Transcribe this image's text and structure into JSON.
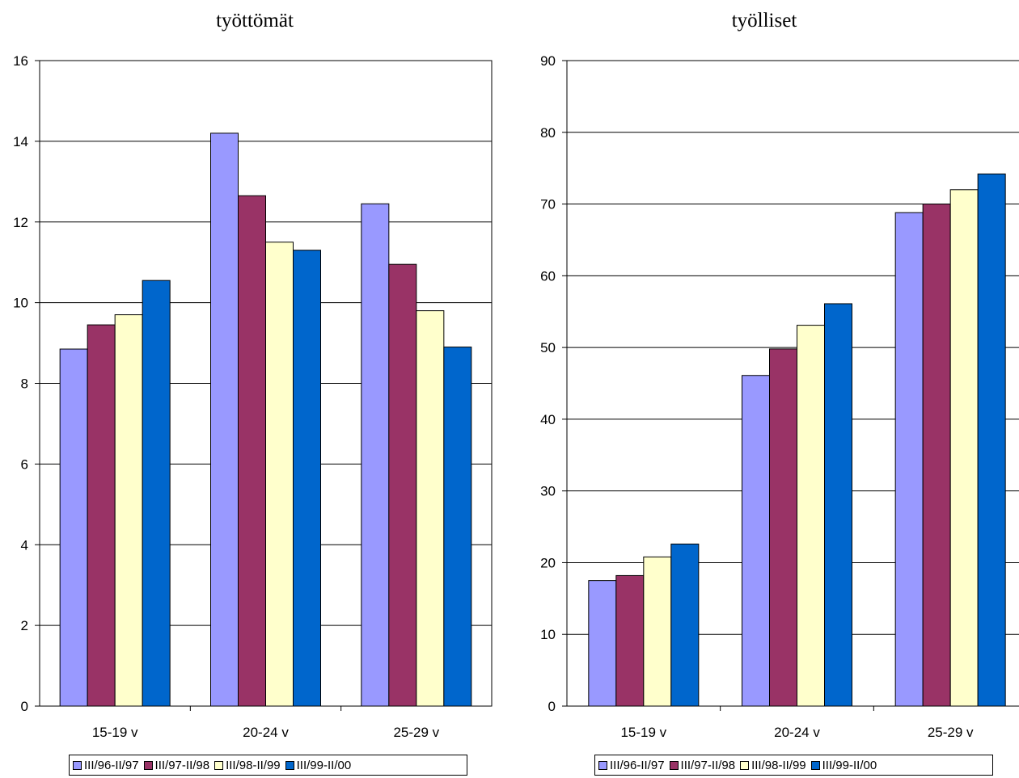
{
  "chart_data": [
    {
      "type": "bar",
      "title": "työttömät",
      "categories": [
        "15-19 v",
        "20-24 v",
        "25-29 v"
      ],
      "series": [
        {
          "name": "III/96-II/97",
          "values": [
            8.85,
            14.2,
            12.45
          ]
        },
        {
          "name": "III/97-II/98",
          "values": [
            9.45,
            12.65,
            10.95
          ]
        },
        {
          "name": "III/98-II/99",
          "values": [
            9.7,
            11.5,
            9.8
          ]
        },
        {
          "name": "III/99-II/00",
          "values": [
            10.55,
            11.3,
            8.9
          ]
        }
      ],
      "xlabel": "",
      "ylabel": "",
      "ylim": [
        0,
        16
      ],
      "yticks": [
        0,
        2,
        4,
        6,
        8,
        10,
        12,
        14,
        16
      ],
      "grid": true,
      "legend": "bottom"
    },
    {
      "type": "bar",
      "title": "työlliset",
      "categories": [
        "15-19 v",
        "20-24 v",
        "25-29 v"
      ],
      "series": [
        {
          "name": "III/96-II/97",
          "values": [
            17.5,
            46.1,
            68.8
          ]
        },
        {
          "name": "III/97-II/98",
          "values": [
            18.2,
            49.8,
            70.0
          ]
        },
        {
          "name": "III/98-II/99",
          "values": [
            20.8,
            53.1,
            72.0
          ]
        },
        {
          "name": "III/99-II/00",
          "values": [
            22.6,
            56.1,
            74.2
          ]
        }
      ],
      "xlabel": "",
      "ylabel": "",
      "ylim": [
        0,
        90
      ],
      "yticks": [
        0,
        10,
        20,
        30,
        40,
        50,
        60,
        70,
        80,
        90
      ],
      "grid": true,
      "legend": "bottom"
    }
  ],
  "colors": {
    "series": [
      "#9999FF",
      "#993366",
      "#FFFFCC",
      "#0066CC"
    ]
  }
}
